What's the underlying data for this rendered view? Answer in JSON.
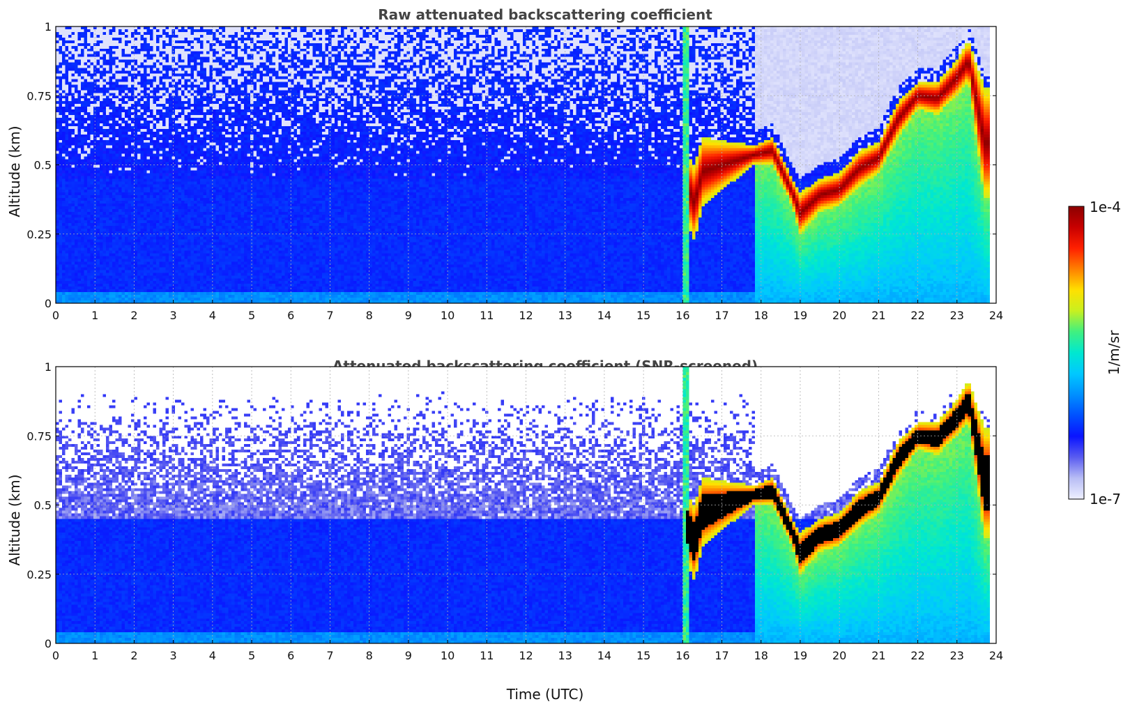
{
  "figure": {
    "xlabel": "Time (UTC)",
    "colorbar": {
      "label": "1/m/sr",
      "max_label": "1e-4",
      "min_label": "1e-7",
      "range": [
        1e-07,
        0.0001
      ],
      "scale": "log",
      "colors": [
        "#eef0ff",
        "#b8bdf5",
        "#5a5cf0",
        "#0a14ff",
        "#0050ff",
        "#0090ff",
        "#00c8ff",
        "#00e8d0",
        "#40f080",
        "#c8f020",
        "#ffe000",
        "#ff8000",
        "#ff2000",
        "#c80000",
        "#8c0000"
      ]
    }
  },
  "chart_data": [
    {
      "type": "heatmap",
      "title": "Raw attenuated backscattering coefficient",
      "xlabel": "",
      "ylabel": "Altitude (km)",
      "xlim": [
        0,
        24
      ],
      "ylim": [
        0,
        1
      ],
      "xticks": [
        0,
        1,
        2,
        3,
        4,
        5,
        6,
        7,
        8,
        9,
        10,
        11,
        12,
        13,
        14,
        15,
        16,
        17,
        18,
        19,
        20,
        21,
        22,
        23,
        24
      ],
      "xtick_labels": [
        "0",
        "1",
        "2",
        "3",
        "4",
        "5",
        "6",
        "7",
        "8",
        "9",
        "10",
        "11",
        "12",
        "13",
        "14",
        "15",
        "16",
        "17",
        "18",
        "19",
        "20",
        "21",
        "22",
        "23",
        "24"
      ],
      "yticks": [
        0,
        0.25,
        0.5,
        0.75,
        1
      ],
      "ytick_labels": [
        "0",
        "0.25",
        "0.5",
        "0.75",
        "1"
      ],
      "grid": true,
      "data_end_time": 23.8,
      "approx_features": {
        "cloud_layer_top_altitude_by_time": {
          "time": [
            16.1,
            16.3,
            16.5,
            17.8,
            18.3,
            18.8,
            19.0,
            19.5,
            20.0,
            20.5,
            21.0,
            21.5,
            22.0,
            22.5,
            23.0,
            23.3,
            23.7
          ],
          "altitude": [
            0.55,
            0.5,
            0.6,
            0.57,
            0.6,
            0.45,
            0.4,
            0.45,
            0.47,
            0.55,
            0.58,
            0.73,
            0.8,
            0.8,
            0.88,
            0.95,
            0.78
          ]
        },
        "cloud_layer_base_altitude_by_time": {
          "time": [
            16.1,
            16.3,
            16.5,
            17.8,
            18.3,
            18.8,
            19.0,
            19.5,
            20.0,
            20.5,
            21.0,
            21.5,
            22.0,
            22.5,
            23.0,
            23.3,
            23.7
          ],
          "altitude": [
            0.3,
            0.22,
            0.35,
            0.5,
            0.5,
            0.35,
            0.25,
            0.33,
            0.35,
            0.42,
            0.47,
            0.6,
            0.7,
            0.68,
            0.75,
            0.8,
            0.38
          ]
        }
      }
    },
    {
      "type": "heatmap",
      "title": "Attenuated backscattering coefficient (SNR-screened)",
      "xlabel": "Time (UTC)",
      "ylabel": "Altitude (km)",
      "xlim": [
        0,
        24
      ],
      "ylim": [
        0,
        1
      ],
      "xticks": [
        0,
        1,
        2,
        3,
        4,
        5,
        6,
        7,
        8,
        9,
        10,
        11,
        12,
        13,
        14,
        15,
        16,
        17,
        18,
        19,
        20,
        21,
        22,
        23,
        24
      ],
      "xtick_labels": [
        "0",
        "1",
        "2",
        "3",
        "4",
        "5",
        "6",
        "7",
        "8",
        "9",
        "10",
        "11",
        "12",
        "13",
        "14",
        "15",
        "16",
        "17",
        "18",
        "19",
        "20",
        "21",
        "22",
        "23",
        "24"
      ],
      "yticks": [
        0,
        0.25,
        0.5,
        0.75,
        1
      ],
      "ytick_labels": [
        "0",
        "0.25",
        "0.5",
        "0.75",
        "1"
      ],
      "grid": true,
      "data_end_time": 23.8,
      "approx_features": {
        "cloud_layer_top_altitude_by_time": {
          "time": [
            16.1,
            16.3,
            16.5,
            17.8,
            18.3,
            18.8,
            19.0,
            19.5,
            20.0,
            20.5,
            21.0,
            21.5,
            22.0,
            22.5,
            23.0,
            23.3,
            23.7
          ],
          "altitude": [
            0.55,
            0.5,
            0.6,
            0.57,
            0.6,
            0.45,
            0.4,
            0.45,
            0.47,
            0.55,
            0.58,
            0.73,
            0.8,
            0.8,
            0.88,
            0.95,
            0.78
          ]
        },
        "cloud_layer_base_altitude_by_time": {
          "time": [
            16.1,
            16.3,
            16.5,
            17.8,
            18.3,
            18.8,
            19.0,
            19.5,
            20.0,
            20.5,
            21.0,
            21.5,
            22.0,
            22.5,
            23.0,
            23.3,
            23.7
          ],
          "altitude": [
            0.3,
            0.22,
            0.35,
            0.5,
            0.5,
            0.35,
            0.25,
            0.33,
            0.35,
            0.42,
            0.47,
            0.6,
            0.7,
            0.68,
            0.75,
            0.8,
            0.38
          ]
        },
        "screened_out_color": "#ffffff",
        "saturated_core_color": "#000000"
      }
    }
  ]
}
